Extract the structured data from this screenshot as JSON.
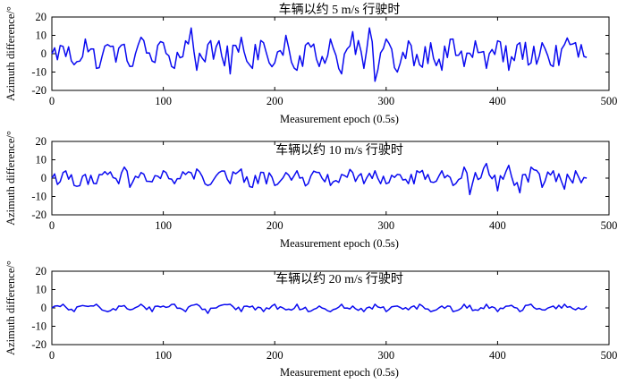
{
  "chart_data": [
    {
      "type": "line",
      "title": "车辆以约 5 m/s 行驶时",
      "xlabel": "Measurement epoch (0.5s)",
      "ylabel": "Azimuth difference/°",
      "xlim": [
        0,
        500
      ],
      "ylim": [
        -20,
        20
      ],
      "xticks": [
        0,
        100,
        200,
        300,
        400,
        500
      ],
      "yticks": [
        -20,
        -10,
        0,
        10,
        20
      ],
      "grid": false,
      "x_range": [
        0,
        480
      ],
      "series": [
        {
          "color": "#0a0af0",
          "x": [
            0,
            10,
            20,
            30,
            40,
            50,
            60,
            70,
            80,
            90,
            100,
            110,
            120,
            125,
            130,
            140,
            150,
            160,
            170,
            180,
            190,
            200,
            210,
            220,
            230,
            240,
            250,
            260,
            270,
            280,
            285,
            290,
            300,
            310,
            320,
            330,
            340,
            350,
            360,
            370,
            380,
            390,
            400,
            410,
            420,
            430,
            440,
            450,
            460,
            470,
            480
          ],
          "y": [
            0,
            4,
            -6,
            8,
            -8,
            5,
            3,
            -7,
            9,
            -4,
            6,
            -8,
            7,
            14,
            -9,
            5,
            7,
            -11,
            9,
            -8,
            6,
            -5,
            10,
            -9,
            6,
            -7,
            8,
            -11,
            12,
            -8,
            14,
            -15,
            8,
            -10,
            7,
            -6,
            6,
            -9,
            8,
            -7,
            7,
            -8,
            7,
            -9,
            6,
            -5,
            6,
            -7,
            5,
            6,
            -2
          ]
        }
      ]
    },
    {
      "type": "line",
      "title": "车辆以约 10 m/s 行驶时",
      "xlabel": "Measurement epoch (0.5s)",
      "ylabel": "Azimuth difference/°",
      "xlim": [
        0,
        500
      ],
      "ylim": [
        -20,
        20
      ],
      "xticks": [
        0,
        100,
        200,
        300,
        400,
        500
      ],
      "yticks": [
        -20,
        -10,
        0,
        10,
        20
      ],
      "grid": false,
      "x_range": [
        0,
        480
      ],
      "series": [
        {
          "color": "#0a0af0",
          "x": [
            0,
            10,
            20,
            30,
            40,
            50,
            60,
            65,
            70,
            80,
            90,
            100,
            110,
            120,
            130,
            140,
            150,
            160,
            170,
            180,
            190,
            200,
            210,
            220,
            230,
            240,
            250,
            260,
            270,
            280,
            290,
            300,
            310,
            320,
            330,
            340,
            350,
            360,
            370,
            375,
            380,
            390,
            400,
            410,
            420,
            430,
            440,
            450,
            460,
            470,
            480
          ],
          "y": [
            0,
            3,
            -4,
            2,
            -3,
            2,
            -3,
            6,
            -5,
            3,
            -2,
            4,
            -3,
            2,
            5,
            -4,
            3,
            -3,
            5,
            -5,
            3,
            -4,
            3,
            4,
            -3,
            3,
            -4,
            2,
            3,
            -3,
            4,
            -3,
            2,
            -3,
            3,
            -2,
            4,
            -4,
            6,
            -9,
            3,
            8,
            -7,
            7,
            -8,
            6,
            -5,
            4,
            -6,
            4,
            0
          ]
        }
      ]
    },
    {
      "type": "line",
      "title": "车辆以约 20 m/s 行驶时",
      "xlabel": "Measurement epoch (0.5s)",
      "ylabel": "Azimuth difference/°",
      "xlim": [
        0,
        500
      ],
      "ylim": [
        -20,
        20
      ],
      "xticks": [
        0,
        100,
        200,
        300,
        400,
        500
      ],
      "yticks": [
        -20,
        -10,
        0,
        10,
        20
      ],
      "grid": false,
      "x_range": [
        0,
        480
      ],
      "series": [
        {
          "color": "#0a0af0",
          "x": [
            0,
            10,
            20,
            30,
            40,
            50,
            60,
            70,
            80,
            90,
            100,
            110,
            120,
            130,
            140,
            150,
            160,
            170,
            180,
            190,
            200,
            210,
            220,
            230,
            240,
            250,
            260,
            270,
            280,
            290,
            300,
            310,
            320,
            330,
            340,
            350,
            360,
            370,
            380,
            390,
            400,
            410,
            420,
            430,
            440,
            450,
            460,
            470,
            480
          ],
          "y": [
            0,
            2,
            -2,
            1,
            2,
            -2,
            1,
            -1,
            2,
            -2,
            1,
            2,
            -2,
            2,
            -3,
            1,
            2,
            -2,
            1,
            -2,
            2,
            -1,
            2,
            -2,
            1,
            -2,
            2,
            1,
            -2,
            2,
            -2,
            1,
            -1,
            2,
            -2,
            1,
            -2,
            2,
            -1,
            2,
            -2,
            1,
            -2,
            2,
            -1,
            1,
            2,
            -1,
            1
          ]
        }
      ]
    }
  ]
}
